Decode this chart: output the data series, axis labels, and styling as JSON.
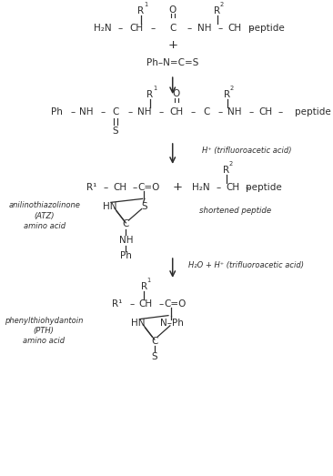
{
  "bg_color": "#ffffff",
  "text_color": "#2d2d2d",
  "figsize": [
    3.66,
    5.23
  ],
  "dpi": 100,
  "xlim": [
    0,
    10
  ],
  "ylim": [
    0,
    14.3
  ]
}
